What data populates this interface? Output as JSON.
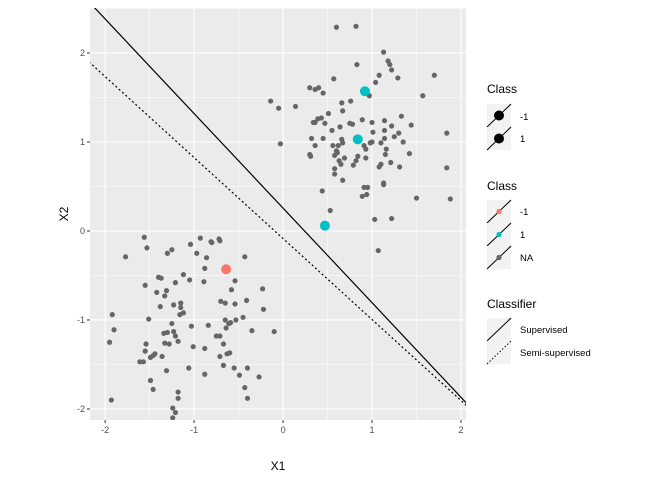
{
  "chart_data": {
    "type": "scatter",
    "title": "",
    "xlabel": "X1",
    "ylabel": "X2",
    "xlim": [
      -2.17,
      2.056
    ],
    "ylim": [
      -2.124,
      2.506
    ],
    "xticks": [
      -2,
      -1,
      0,
      1,
      2
    ],
    "yticks": [
      -2,
      -1,
      0,
      1,
      2
    ],
    "grid": true,
    "background": "#EBEBEB",
    "colors": {
      "-1": "#F8766D",
      "1": "#00BFC4",
      "NA": "#666666"
    },
    "labeled_points": [
      {
        "x": -0.64,
        "y": -0.43,
        "class": "-1"
      },
      {
        "x": 0.47,
        "y": 0.06,
        "class": "1"
      },
      {
        "x": 0.84,
        "y": 1.03,
        "class": "1"
      },
      {
        "x": 0.92,
        "y": 1.57,
        "class": "1"
      }
    ],
    "unlabeled_points": [
      [
        0.6,
        2.29
      ],
      [
        0.82,
        2.3
      ],
      [
        1.13,
        2.01
      ],
      [
        1.18,
        1.91
      ],
      [
        1.2,
        1.87
      ],
      [
        1.22,
        1.81
      ],
      [
        0.83,
        1.87
      ],
      [
        1.08,
        1.75
      ],
      [
        1.29,
        1.72
      ],
      [
        1.7,
        1.75
      ],
      [
        0.57,
        1.71
      ],
      [
        1.04,
        1.67
      ],
      [
        0.3,
        1.61
      ],
      [
        0.36,
        1.59
      ],
      [
        0.4,
        1.61
      ],
      [
        0.45,
        1.55
      ],
      [
        0.97,
        1.52
      ],
      [
        1.57,
        1.52
      ],
      [
        -0.14,
        1.46
      ],
      [
        -0.05,
        1.38
      ],
      [
        0.14,
        1.4
      ],
      [
        0.66,
        1.44
      ],
      [
        0.76,
        1.46
      ],
      [
        0.67,
        1.35
      ],
      [
        0.51,
        1.32
      ],
      [
        0.34,
        1.22
      ],
      [
        0.36,
        1.22
      ],
      [
        0.39,
        1.26
      ],
      [
        0.43,
        1.27
      ],
      [
        0.47,
        1.21
      ],
      [
        0.55,
        1.13
      ],
      [
        0.64,
        1.17
      ],
      [
        0.75,
        1.21
      ],
      [
        0.78,
        1.2
      ],
      [
        0.89,
        1.25
      ],
      [
        1.0,
        1.22
      ],
      [
        1.14,
        1.24
      ],
      [
        1.22,
        1.18
      ],
      [
        1.33,
        1.29
      ],
      [
        1.44,
        1.19
      ],
      [
        1.84,
        1.1
      ],
      [
        1.01,
        1.11
      ],
      [
        1.14,
        1.13
      ],
      [
        1.14,
        1.04
      ],
      [
        1.25,
        1.06
      ],
      [
        1.3,
        1.1
      ],
      [
        1.35,
        1.0
      ],
      [
        -0.03,
        0.98
      ],
      [
        0.32,
        1.04
      ],
      [
        0.45,
        1.04
      ],
      [
        0.36,
        0.96
      ],
      [
        0.56,
        0.96
      ],
      [
        0.62,
        0.96
      ],
      [
        0.66,
        1.03
      ],
      [
        0.67,
        0.99
      ],
      [
        0.91,
        0.96
      ],
      [
        0.93,
        0.92
      ],
      [
        0.98,
        0.99
      ],
      [
        1.0,
        1.0
      ],
      [
        1.1,
        0.99
      ],
      [
        1.16,
        0.92
      ],
      [
        1.15,
        0.86
      ],
      [
        1.42,
        0.87
      ],
      [
        0.3,
        0.86
      ],
      [
        0.31,
        0.84
      ],
      [
        0.6,
        0.9
      ],
      [
        0.61,
        0.88
      ],
      [
        0.58,
        0.85
      ],
      [
        0.63,
        0.79
      ],
      [
        0.65,
        0.75
      ],
      [
        0.69,
        0.82
      ],
      [
        0.84,
        0.84
      ],
      [
        0.82,
        0.79
      ],
      [
        0.79,
        0.74
      ],
      [
        0.93,
        0.82
      ],
      [
        1.08,
        0.72
      ],
      [
        1.1,
        0.75
      ],
      [
        1.21,
        0.77
      ],
      [
        1.31,
        0.72
      ],
      [
        1.84,
        0.71
      ],
      [
        0.58,
        0.7
      ],
      [
        0.58,
        0.64
      ],
      [
        0.67,
        0.57
      ],
      [
        0.91,
        0.49
      ],
      [
        0.95,
        0.49
      ],
      [
        1.13,
        0.54
      ],
      [
        1.13,
        0.52
      ],
      [
        0.44,
        0.45
      ],
      [
        0.89,
        0.39
      ],
      [
        0.94,
        0.41
      ],
      [
        1.5,
        0.37
      ],
      [
        1.88,
        0.36
      ],
      [
        0.53,
        0.23
      ],
      [
        1.03,
        0.13
      ],
      [
        1.22,
        0.14
      ],
      [
        1.07,
        -0.22
      ],
      [
        -1.56,
        -0.07
      ],
      [
        -1.53,
        -0.19
      ],
      [
        -1.77,
        -0.29
      ],
      [
        -1.3,
        -0.25
      ],
      [
        -1.25,
        -0.21
      ],
      [
        -1.04,
        -0.15
      ],
      [
        -0.93,
        -0.08
      ],
      [
        -0.81,
        -0.12
      ],
      [
        -0.8,
        -0.13
      ],
      [
        -0.72,
        -0.09
      ],
      [
        -0.71,
        -0.11
      ],
      [
        -0.97,
        -0.25
      ],
      [
        -0.86,
        -0.3
      ],
      [
        -0.43,
        -0.29
      ],
      [
        -0.88,
        -0.42
      ],
      [
        -1.4,
        -0.52
      ],
      [
        -1.37,
        -0.53
      ],
      [
        -1.12,
        -0.49
      ],
      [
        -1.05,
        -0.55
      ],
      [
        -0.89,
        -0.57
      ],
      [
        -0.54,
        -0.56
      ],
      [
        -1.55,
        -0.61
      ],
      [
        -1.21,
        -0.58
      ],
      [
        -1.42,
        -0.69
      ],
      [
        -1.31,
        -0.67
      ],
      [
        -1.33,
        -0.73
      ],
      [
        -0.58,
        -0.66
      ],
      [
        -0.23,
        -0.65
      ],
      [
        -1.38,
        -0.85
      ],
      [
        -1.23,
        -0.83
      ],
      [
        -1.15,
        -0.81
      ],
      [
        -1.15,
        -0.86
      ],
      [
        -1.16,
        -0.94
      ],
      [
        -1.12,
        -0.92
      ],
      [
        -0.7,
        -0.79
      ],
      [
        -0.65,
        -0.81
      ],
      [
        -0.54,
        -0.82
      ],
      [
        -0.41,
        -0.78
      ],
      [
        -0.22,
        -0.88
      ],
      [
        -0.45,
        -0.97
      ],
      [
        -1.92,
        -0.94
      ],
      [
        -1.51,
        -0.99
      ],
      [
        -0.65,
        -1.0
      ],
      [
        -0.61,
        -1.04
      ],
      [
        -0.59,
        -1.03
      ],
      [
        -0.53,
        -1.0
      ],
      [
        -0.64,
        -1.09
      ],
      [
        -1.25,
        -1.04
      ],
      [
        -1.03,
        -1.07
      ],
      [
        -0.84,
        -1.06
      ],
      [
        -1.9,
        -1.11
      ],
      [
        -0.35,
        -1.12
      ],
      [
        -0.1,
        -1.13
      ],
      [
        -1.34,
        -1.15
      ],
      [
        -1.3,
        -1.14
      ],
      [
        -1.23,
        -1.13
      ],
      [
        -1.21,
        -1.18
      ],
      [
        -1.18,
        -1.24
      ],
      [
        -0.75,
        -1.18
      ],
      [
        -0.71,
        -1.18
      ],
      [
        -1.95,
        -1.25
      ],
      [
        -1.54,
        -1.27
      ],
      [
        -1.33,
        -1.26
      ],
      [
        -1.28,
        -1.27
      ],
      [
        -1.01,
        -1.3
      ],
      [
        -0.88,
        -1.32
      ],
      [
        -0.67,
        -1.27
      ],
      [
        -1.55,
        -1.35
      ],
      [
        -1.44,
        -1.38
      ],
      [
        -1.46,
        -1.4
      ],
      [
        -1.49,
        -1.42
      ],
      [
        -1.36,
        -1.41
      ],
      [
        -1.61,
        -1.47
      ],
      [
        -1.57,
        -1.47
      ],
      [
        -0.63,
        -1.38
      ],
      [
        -0.6,
        -1.37
      ],
      [
        -0.71,
        -1.41
      ],
      [
        -0.67,
        -1.51
      ],
      [
        -0.55,
        -1.54
      ],
      [
        -0.4,
        -1.54
      ],
      [
        -0.49,
        -1.62
      ],
      [
        -0.27,
        -1.64
      ],
      [
        -1.06,
        -1.54
      ],
      [
        -1.31,
        -1.57
      ],
      [
        -0.88,
        -1.61
      ],
      [
        -1.49,
        -1.68
      ],
      [
        -1.46,
        -1.78
      ],
      [
        -1.18,
        -1.81
      ],
      [
        -1.18,
        -1.88
      ],
      [
        -0.43,
        -1.76
      ],
      [
        -0.4,
        -1.88
      ],
      [
        -1.93,
        -1.9
      ],
      [
        -1.24,
        -1.99
      ],
      [
        -1.21,
        -2.04
      ],
      [
        -1.24,
        -2.1
      ]
    ],
    "lines": [
      {
        "name": "Supervised",
        "intercept": 0.257,
        "slope": -1.063,
        "linetype": "solid"
      },
      {
        "name": "Semi-supervised",
        "intercept": -0.085,
        "slope": -0.91,
        "linetype": "dotted"
      }
    ],
    "legend_placement": "right",
    "legends": [
      {
        "title": "Class",
        "entries": [
          "-1",
          "1"
        ]
      },
      {
        "title": "Class",
        "entries": [
          "-1",
          "1",
          "NA"
        ]
      },
      {
        "title": "Classifier",
        "entries": [
          "Supervised",
          "Semi-supervised"
        ]
      }
    ]
  }
}
